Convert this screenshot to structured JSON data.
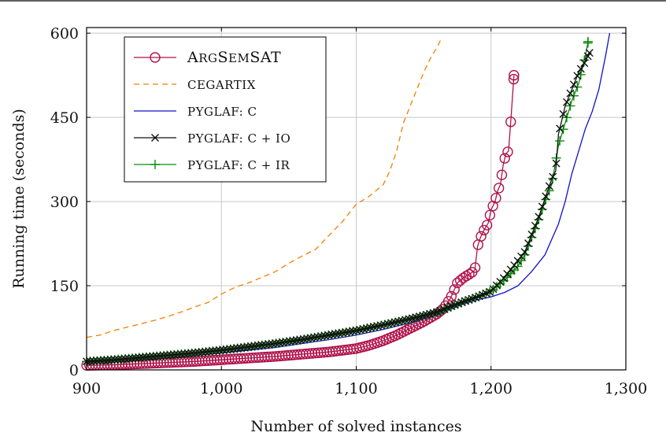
{
  "chart_data": {
    "type": "line",
    "title": "",
    "xlabel": "Number of solved instances",
    "ylabel": "Running time (seconds)",
    "xlim": [
      900,
      1300
    ],
    "ylim": [
      0,
      610
    ],
    "xticks": [
      900,
      1000,
      1100,
      1200,
      1300
    ],
    "xtick_labels": [
      "900",
      "1,000",
      "1,100",
      "1,200",
      "1,300"
    ],
    "yticks": [
      0,
      150,
      300,
      450,
      600
    ],
    "ytick_labels": [
      "0",
      "150",
      "300",
      "450",
      "600"
    ],
    "grid": true,
    "legend_position": "top-left",
    "series": [
      {
        "name": "ArgSemSAT",
        "color": "#b0124a",
        "style": "solid",
        "marker": "circle",
        "x": [
          900,
          920,
          940,
          960,
          980,
          1000,
          1020,
          1040,
          1060,
          1080,
          1100,
          1110,
          1120,
          1130,
          1140,
          1150,
          1160,
          1165,
          1170,
          1175,
          1180,
          1185,
          1188,
          1190,
          1192,
          1195,
          1198,
          1200,
          1203,
          1205,
          1207,
          1209,
          1211,
          1213,
          1215,
          1217
        ],
        "y": [
          8,
          9,
          11,
          13,
          15,
          18,
          21,
          24,
          28,
          32,
          38,
          44,
          52,
          62,
          74,
          86,
          100,
          110,
          128,
          155,
          165,
          172,
          178,
          220,
          235,
          250,
          262,
          285,
          300,
          320,
          330,
          365,
          385,
          390,
          455,
          525
        ]
      },
      {
        "name": "CEGARTIX",
        "color": "#f08000",
        "style": "dashed",
        "marker": "none",
        "x": [
          900,
          910,
          920,
          930,
          940,
          950,
          960,
          970,
          980,
          990,
          1000,
          1010,
          1020,
          1030,
          1040,
          1050,
          1060,
          1070,
          1080,
          1090,
          1100,
          1110,
          1120,
          1125,
          1130,
          1135,
          1140,
          1145,
          1150,
          1155,
          1160,
          1163
        ],
        "y": [
          58,
          62,
          70,
          76,
          82,
          88,
          95,
          103,
          112,
          120,
          135,
          147,
          155,
          165,
          175,
          190,
          203,
          215,
          240,
          265,
          295,
          310,
          330,
          355,
          390,
          440,
          470,
          500,
          530,
          555,
          575,
          590
        ]
      },
      {
        "name": "pyglaf: c",
        "color": "#1010c8",
        "style": "solid",
        "marker": "none",
        "x": [
          900,
          920,
          940,
          960,
          980,
          1000,
          1020,
          1040,
          1060,
          1080,
          1100,
          1120,
          1140,
          1160,
          1170,
          1180,
          1190,
          1200,
          1210,
          1220,
          1230,
          1240,
          1250,
          1255,
          1260,
          1265,
          1270,
          1275,
          1280,
          1285,
          1288
        ],
        "y": [
          12,
          15,
          18,
          22,
          26,
          30,
          35,
          40,
          47,
          54,
          62,
          72,
          84,
          98,
          108,
          118,
          125,
          130,
          138,
          150,
          175,
          205,
          260,
          300,
          350,
          390,
          430,
          460,
          500,
          560,
          600
        ]
      },
      {
        "name": "pyglaf: c + IO",
        "color": "#111111",
        "style": "solid",
        "marker": "cross",
        "x": [
          900,
          920,
          940,
          960,
          980,
          1000,
          1020,
          1040,
          1060,
          1080,
          1100,
          1120,
          1140,
          1160,
          1170,
          1180,
          1190,
          1200,
          1210,
          1220,
          1225,
          1230,
          1235,
          1240,
          1245,
          1248,
          1250,
          1255,
          1260,
          1265,
          1270,
          1273
        ],
        "y": [
          15,
          18,
          22,
          26,
          30,
          35,
          41,
          47,
          54,
          62,
          70,
          80,
          91,
          103,
          113,
          122,
          130,
          140,
          165,
          195,
          210,
          240,
          270,
          305,
          340,
          355,
          420,
          470,
          500,
          530,
          550,
          565
        ]
      },
      {
        "name": "pyglaf: c + IR",
        "color": "#0a8a0a",
        "style": "solid",
        "marker": "plus",
        "x": [
          900,
          920,
          940,
          960,
          980,
          1000,
          1020,
          1040,
          1060,
          1080,
          1100,
          1120,
          1140,
          1160,
          1170,
          1180,
          1190,
          1200,
          1210,
          1220,
          1225,
          1230,
          1235,
          1240,
          1245,
          1250,
          1255,
          1260,
          1265,
          1270,
          1272
        ],
        "y": [
          15,
          18,
          22,
          26,
          30,
          35,
          41,
          47,
          54,
          62,
          70,
          80,
          90,
          102,
          112,
          122,
          130,
          140,
          160,
          185,
          205,
          235,
          265,
          300,
          330,
          400,
          440,
          480,
          510,
          560,
          585
        ]
      }
    ]
  },
  "legend": {
    "entries": [
      {
        "label_big": "A",
        "label_small": "RG",
        "label_big2": "S",
        "label_small2": "EM",
        "label_rest": "SAT"
      },
      {
        "label": "CEGARTIX"
      },
      {
        "label": "PYGLAF: C"
      },
      {
        "label": "PYGLAF: C + IO"
      },
      {
        "label": "PYGLAF: C + IR"
      }
    ]
  }
}
